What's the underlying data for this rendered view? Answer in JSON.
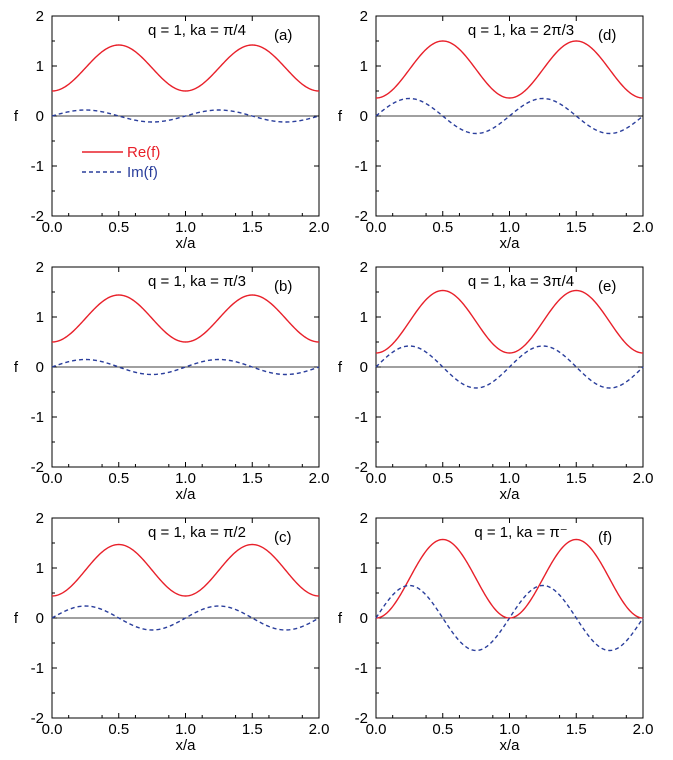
{
  "figure": {
    "legend": {
      "entries": [
        {
          "label": "Re(f)",
          "color": "#e8202a",
          "dash": "solid"
        },
        {
          "label": "Im(f)",
          "color": "#2a3e9c",
          "dash": "dashed"
        }
      ],
      "panel_index": 0
    }
  },
  "chart_data": [
    {
      "type": "line",
      "panel": "a",
      "tag": "(a)",
      "title": "q = 1, ka = π/4",
      "xlabel": "x/a",
      "ylabel": "f",
      "xlim": [
        0,
        2
      ],
      "ylim": [
        -2,
        2
      ],
      "xticks": [
        "0.0",
        "0.5",
        "1.0",
        "1.5",
        "2.0"
      ],
      "yticks": [
        "-2",
        "-1",
        "0",
        "1",
        "2"
      ],
      "grid": false,
      "zero_line": true,
      "series": [
        {
          "name": "Re(f)",
          "color": "#e8202a",
          "dash": "solid",
          "model": {
            "kind": "re",
            "min": 0.5,
            "max": 1.42
          }
        },
        {
          "name": "Im(f)",
          "color": "#2a3e9c",
          "dash": "dashed",
          "model": {
            "kind": "im",
            "amp": 0.12
          }
        }
      ]
    },
    {
      "type": "line",
      "panel": "d",
      "tag": "(d)",
      "title": "q = 1, ka = 2π/3",
      "xlabel": "x/a",
      "ylabel": "f",
      "xlim": [
        0,
        2
      ],
      "ylim": [
        -2,
        2
      ],
      "xticks": [
        "0.0",
        "0.5",
        "1.0",
        "1.5",
        "2.0"
      ],
      "yticks": [
        "-2",
        "-1",
        "0",
        "1",
        "2"
      ],
      "grid": false,
      "zero_line": true,
      "series": [
        {
          "name": "Re(f)",
          "color": "#e8202a",
          "dash": "solid",
          "model": {
            "kind": "re",
            "min": 0.36,
            "max": 1.5
          }
        },
        {
          "name": "Im(f)",
          "color": "#2a3e9c",
          "dash": "dashed",
          "model": {
            "kind": "im",
            "amp": 0.35
          }
        }
      ]
    },
    {
      "type": "line",
      "panel": "b",
      "tag": "(b)",
      "title": "q = 1, ka = π/3",
      "xlabel": "x/a",
      "ylabel": "f",
      "xlim": [
        0,
        2
      ],
      "ylim": [
        -2,
        2
      ],
      "xticks": [
        "0.0",
        "0.5",
        "1.0",
        "1.5",
        "2.0"
      ],
      "yticks": [
        "-2",
        "-1",
        "0",
        "1",
        "2"
      ],
      "grid": false,
      "zero_line": true,
      "series": [
        {
          "name": "Re(f)",
          "color": "#e8202a",
          "dash": "solid",
          "model": {
            "kind": "re",
            "min": 0.5,
            "max": 1.44
          }
        },
        {
          "name": "Im(f)",
          "color": "#2a3e9c",
          "dash": "dashed",
          "model": {
            "kind": "im",
            "amp": 0.15
          }
        }
      ]
    },
    {
      "type": "line",
      "panel": "e",
      "tag": "(e)",
      "title": "q = 1, ka = 3π/4",
      "xlabel": "x/a",
      "ylabel": "f",
      "xlim": [
        0,
        2
      ],
      "ylim": [
        -2,
        2
      ],
      "xticks": [
        "0.0",
        "0.5",
        "1.0",
        "1.5",
        "2.0"
      ],
      "yticks": [
        "-2",
        "-1",
        "0",
        "1",
        "2"
      ],
      "grid": false,
      "zero_line": true,
      "series": [
        {
          "name": "Re(f)",
          "color": "#e8202a",
          "dash": "solid",
          "model": {
            "kind": "re",
            "min": 0.28,
            "max": 1.53
          }
        },
        {
          "name": "Im(f)",
          "color": "#2a3e9c",
          "dash": "dashed",
          "model": {
            "kind": "im",
            "amp": 0.42
          }
        }
      ]
    },
    {
      "type": "line",
      "panel": "c",
      "tag": "(c)",
      "title": "q = 1, ka = π/2",
      "xlabel": "x/a",
      "ylabel": "f",
      "xlim": [
        0,
        2
      ],
      "ylim": [
        -2,
        2
      ],
      "xticks": [
        "0.0",
        "0.5",
        "1.0",
        "1.5",
        "2.0"
      ],
      "yticks": [
        "-2",
        "-1",
        "0",
        "1",
        "2"
      ],
      "grid": false,
      "zero_line": true,
      "series": [
        {
          "name": "Re(f)",
          "color": "#e8202a",
          "dash": "solid",
          "model": {
            "kind": "re",
            "min": 0.44,
            "max": 1.47
          }
        },
        {
          "name": "Im(f)",
          "color": "#2a3e9c",
          "dash": "dashed",
          "model": {
            "kind": "im",
            "amp": 0.24
          }
        }
      ]
    },
    {
      "type": "line",
      "panel": "f",
      "tag": "(f)",
      "title": "q = 1, ka = π⁻",
      "xlabel": "x/a",
      "ylabel": "f",
      "xlim": [
        0,
        2
      ],
      "ylim": [
        -2,
        2
      ],
      "xticks": [
        "0.0",
        "0.5",
        "1.0",
        "1.5",
        "2.0"
      ],
      "yticks": [
        "-2",
        "-1",
        "0",
        "1",
        "2"
      ],
      "grid": false,
      "zero_line": true,
      "series": [
        {
          "name": "Re(f)",
          "color": "#e8202a",
          "dash": "solid",
          "model": {
            "kind": "re",
            "min": 0.0,
            "max": 1.57
          }
        },
        {
          "name": "Im(f)",
          "color": "#2a3e9c",
          "dash": "dashed",
          "model": {
            "kind": "im",
            "amp": 0.65
          }
        }
      ]
    }
  ]
}
